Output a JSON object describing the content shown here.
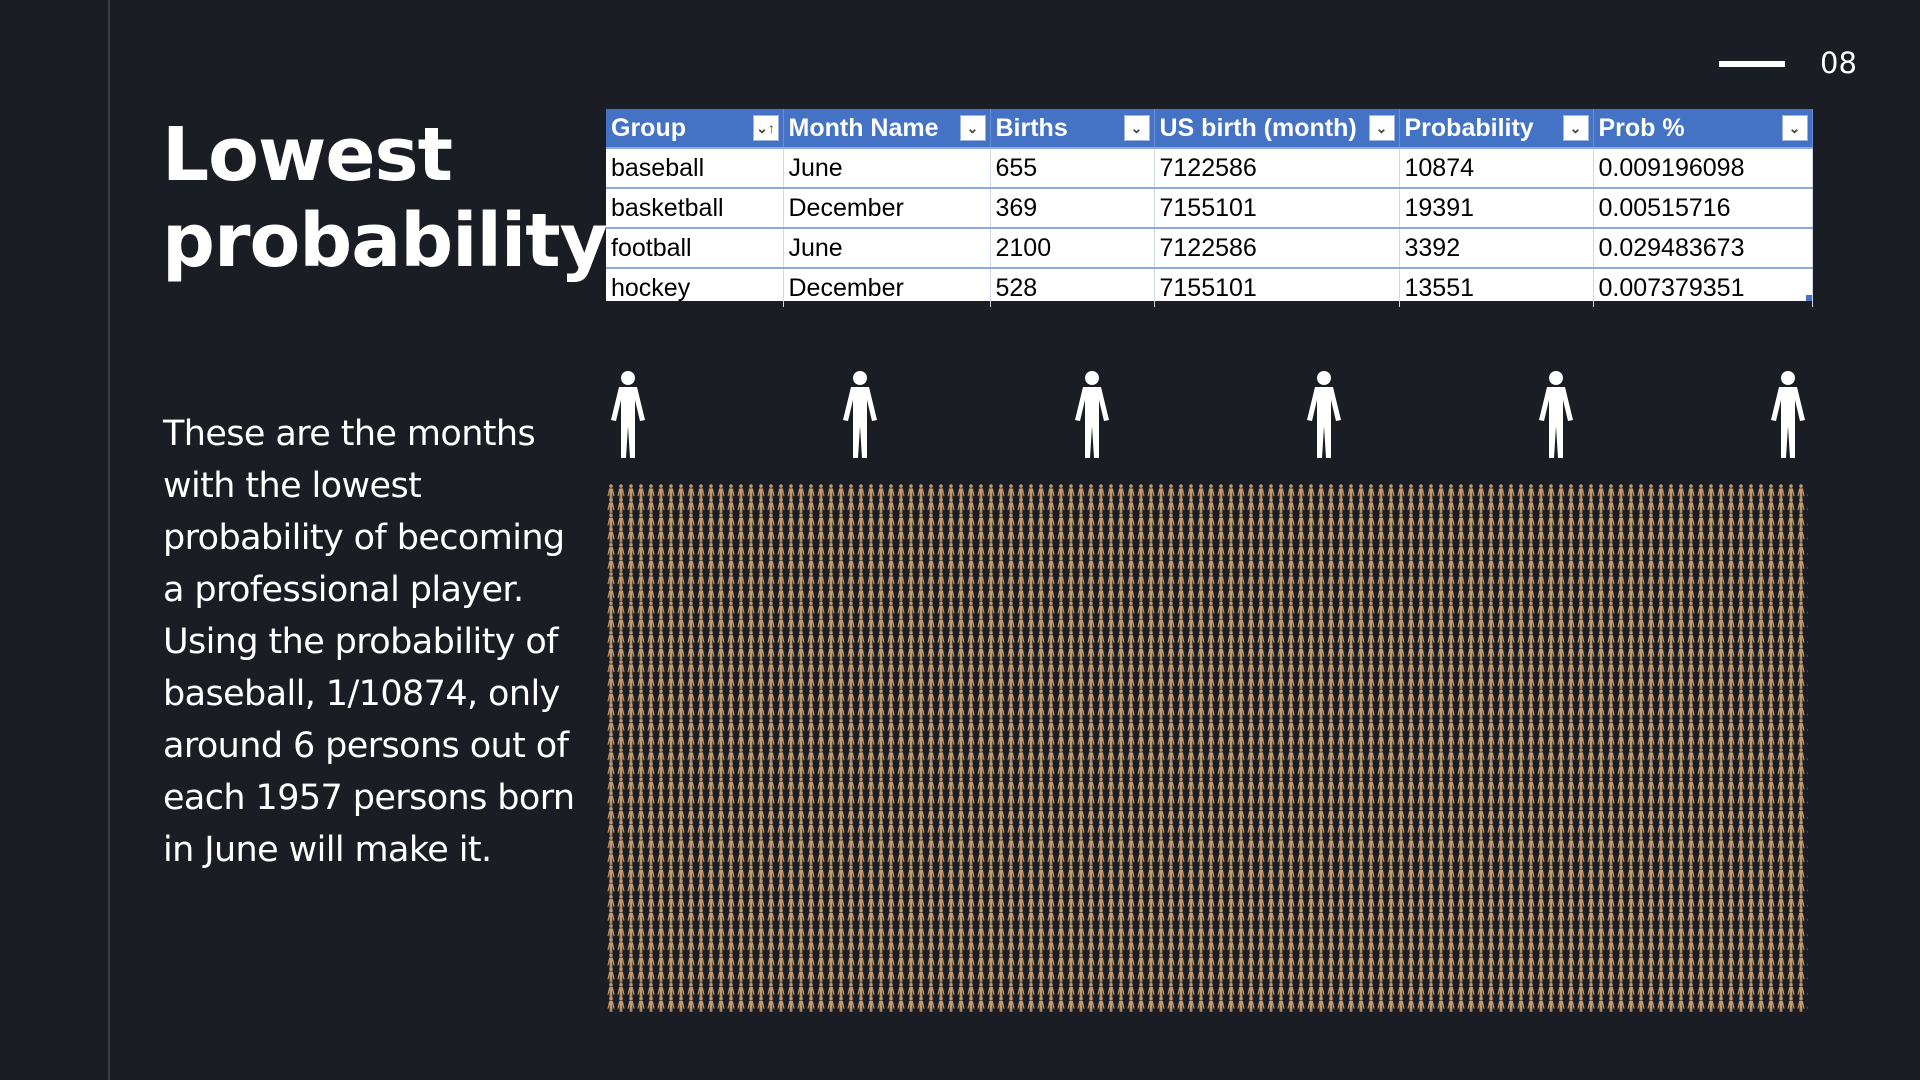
{
  "page": {
    "number": "08"
  },
  "title": "Lowest probability",
  "description": "These are the months with the lowest probability of becoming a professional player. Using the probability of baseball, 1/10874, only around 6 persons out of each 1957 persons born in June will make it.",
  "table": {
    "headers": [
      "Group",
      "Month Name",
      "Births",
      "US birth (month)",
      "Probability",
      "Prob %"
    ],
    "rows": [
      [
        "baseball",
        "June",
        "655",
        "7122586",
        "10874",
        "0.009196098"
      ],
      [
        "basketball",
        "December",
        "369",
        "7155101",
        "19391",
        "0.00515716"
      ],
      [
        "football",
        "June",
        "2100",
        "7122586",
        "3392",
        "0.029483673"
      ],
      [
        "hockey",
        "December",
        "528",
        "7155101",
        "13551",
        "0.007379351"
      ]
    ]
  },
  "infographic": {
    "highlight_count": 6,
    "crowd_columns": 120,
    "crowd_rows": 18,
    "highlight_color": "#ffffff",
    "crowd_color": "#c49a6c"
  }
}
